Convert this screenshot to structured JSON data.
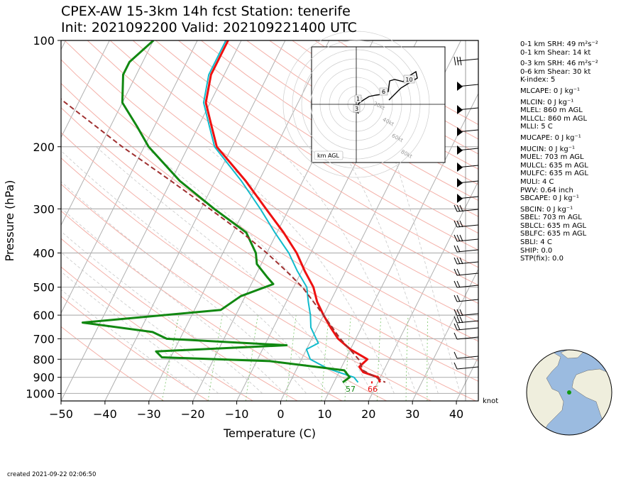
{
  "title": {
    "line1": "CPEX-AW 15-3km  14h fcst  Station: tenerife",
    "line2": "Init: 2021092200  Valid: 202109221400 UTC"
  },
  "created": "created 2021-09-22 02:06:50",
  "knot_label": "knot",
  "indices": [
    "0-1 km SRH: 49 m²s⁻²",
    "0-1 km Shear: 14 kt",
    "0-3 km SRH: 46 m²s⁻²",
    "0-6 km Shear: 30 kt",
    "K-index: 5",
    "MLCAPE: 0 J kg⁻¹",
    "MLCIN: 0 J kg⁻¹",
    "MLEL: 860 m AGL",
    "MLLCL: 860 m AGL",
    "MLLI: 5 C",
    "MUCAPE: 0 J kg⁻¹",
    "MUCIN: 0 J kg⁻¹",
    "MUEL: 703 m AGL",
    "MULCL: 635 m AGL",
    "MULFC: 635 m AGL",
    "MULI: 4 C",
    "PWV: 0.64 inch",
    "SBCAPE: 0 J kg⁻¹",
    "SBCIN: 0 J kg⁻¹",
    "SBEL: 703 m AGL",
    "SBLCL: 635 m AGL",
    "SBLFC: 635 m AGL",
    "SBLI: 4 C",
    "SHIP: 0.0",
    "STP(fix): 0.0"
  ],
  "colors": {
    "temperature": "#ee1111",
    "dewpoint": "#118811",
    "wetbulb": "#11bbcc",
    "parcel": "#a03030",
    "isotherm": "#b0b0b0",
    "dry_adiabat": "#f4b0a8",
    "moist_adiabat": "#c8c8c8",
    "mixing_ratio": "#88cc77",
    "globe_ocean": "#9bbbe0",
    "globe_land": "#efeedd",
    "station_dot": "#119911"
  },
  "chart_data": {
    "type": "line",
    "xlabel": "Temperature (C)",
    "ylabel": "Pressure (hPa)",
    "xlim": [
      -50,
      45
    ],
    "ylim": [
      1050,
      100
    ],
    "y_scale": "log",
    "x_ticks": [
      -50,
      -40,
      -30,
      -20,
      -10,
      0,
      10,
      20,
      30,
      40
    ],
    "y_ticks": [
      100,
      200,
      300,
      400,
      500,
      600,
      700,
      800,
      900,
      1000
    ],
    "grid": true,
    "surface_labels": {
      "dewpoint": "57",
      "temperature": "66"
    },
    "series": [
      {
        "key": "temperature",
        "points": [
          [
            100,
            -53
          ],
          [
            125,
            -53
          ],
          [
            150,
            -51
          ],
          [
            175,
            -47
          ],
          [
            200,
            -43.5
          ],
          [
            250,
            -33
          ],
          [
            300,
            -25.2
          ],
          [
            350,
            -18.5
          ],
          [
            400,
            -13.2
          ],
          [
            450,
            -9.3
          ],
          [
            500,
            -5.5
          ],
          [
            550,
            -3
          ],
          [
            600,
            0
          ],
          [
            650,
            3
          ],
          [
            700,
            6
          ],
          [
            750,
            10
          ],
          [
            800,
            15
          ],
          [
            840,
            14
          ],
          [
            870,
            15.5
          ],
          [
            900,
            19.5
          ],
          [
            930,
            20.5
          ]
        ]
      },
      {
        "key": "wetbulb",
        "points": [
          [
            100,
            -53.5
          ],
          [
            125,
            -53.5
          ],
          [
            150,
            -51.5
          ],
          [
            175,
            -47.5
          ],
          [
            200,
            -44
          ],
          [
            250,
            -34
          ],
          [
            300,
            -26.5
          ],
          [
            350,
            -20.5
          ],
          [
            400,
            -15
          ],
          [
            450,
            -11
          ],
          [
            500,
            -7
          ],
          [
            550,
            -5
          ],
          [
            600,
            -3
          ],
          [
            650,
            -1.5
          ],
          [
            700,
            1
          ],
          [
            720,
            2
          ],
          [
            750,
            0
          ],
          [
            800,
            2
          ],
          [
            850,
            7
          ],
          [
            900,
            14
          ],
          [
            930,
            15.5
          ]
        ]
      },
      {
        "key": "dewpoint",
        "points": [
          [
            100,
            -70
          ],
          [
            115,
            -73
          ],
          [
            125,
            -73
          ],
          [
            150,
            -70
          ],
          [
            175,
            -64
          ],
          [
            200,
            -59
          ],
          [
            250,
            -48
          ],
          [
            300,
            -37
          ],
          [
            350,
            -27
          ],
          [
            400,
            -22.5
          ],
          [
            430,
            -21
          ],
          [
            470,
            -17
          ],
          [
            490,
            -15
          ],
          [
            530,
            -21
          ],
          [
            580,
            -24
          ],
          [
            630,
            -54
          ],
          [
            670,
            -37
          ],
          [
            700,
            -33
          ],
          [
            730,
            -5
          ],
          [
            760,
            -34
          ],
          [
            790,
            -32
          ],
          [
            810,
            -7
          ],
          [
            860,
            11
          ],
          [
            900,
            13
          ],
          [
            930,
            12
          ]
        ]
      },
      {
        "key": "parcel",
        "points": [
          [
            115,
            -99
          ],
          [
            150,
            -83
          ],
          [
            200,
            -65
          ],
          [
            250,
            -50
          ],
          [
            300,
            -38
          ],
          [
            350,
            -28
          ],
          [
            400,
            -20
          ],
          [
            450,
            -13.5
          ],
          [
            500,
            -8
          ],
          [
            600,
            0
          ],
          [
            700,
            6.5
          ],
          [
            800,
            13
          ],
          [
            860,
            15.3
          ],
          [
            900,
            19
          ],
          [
            930,
            21.7
          ]
        ]
      }
    ]
  }
}
